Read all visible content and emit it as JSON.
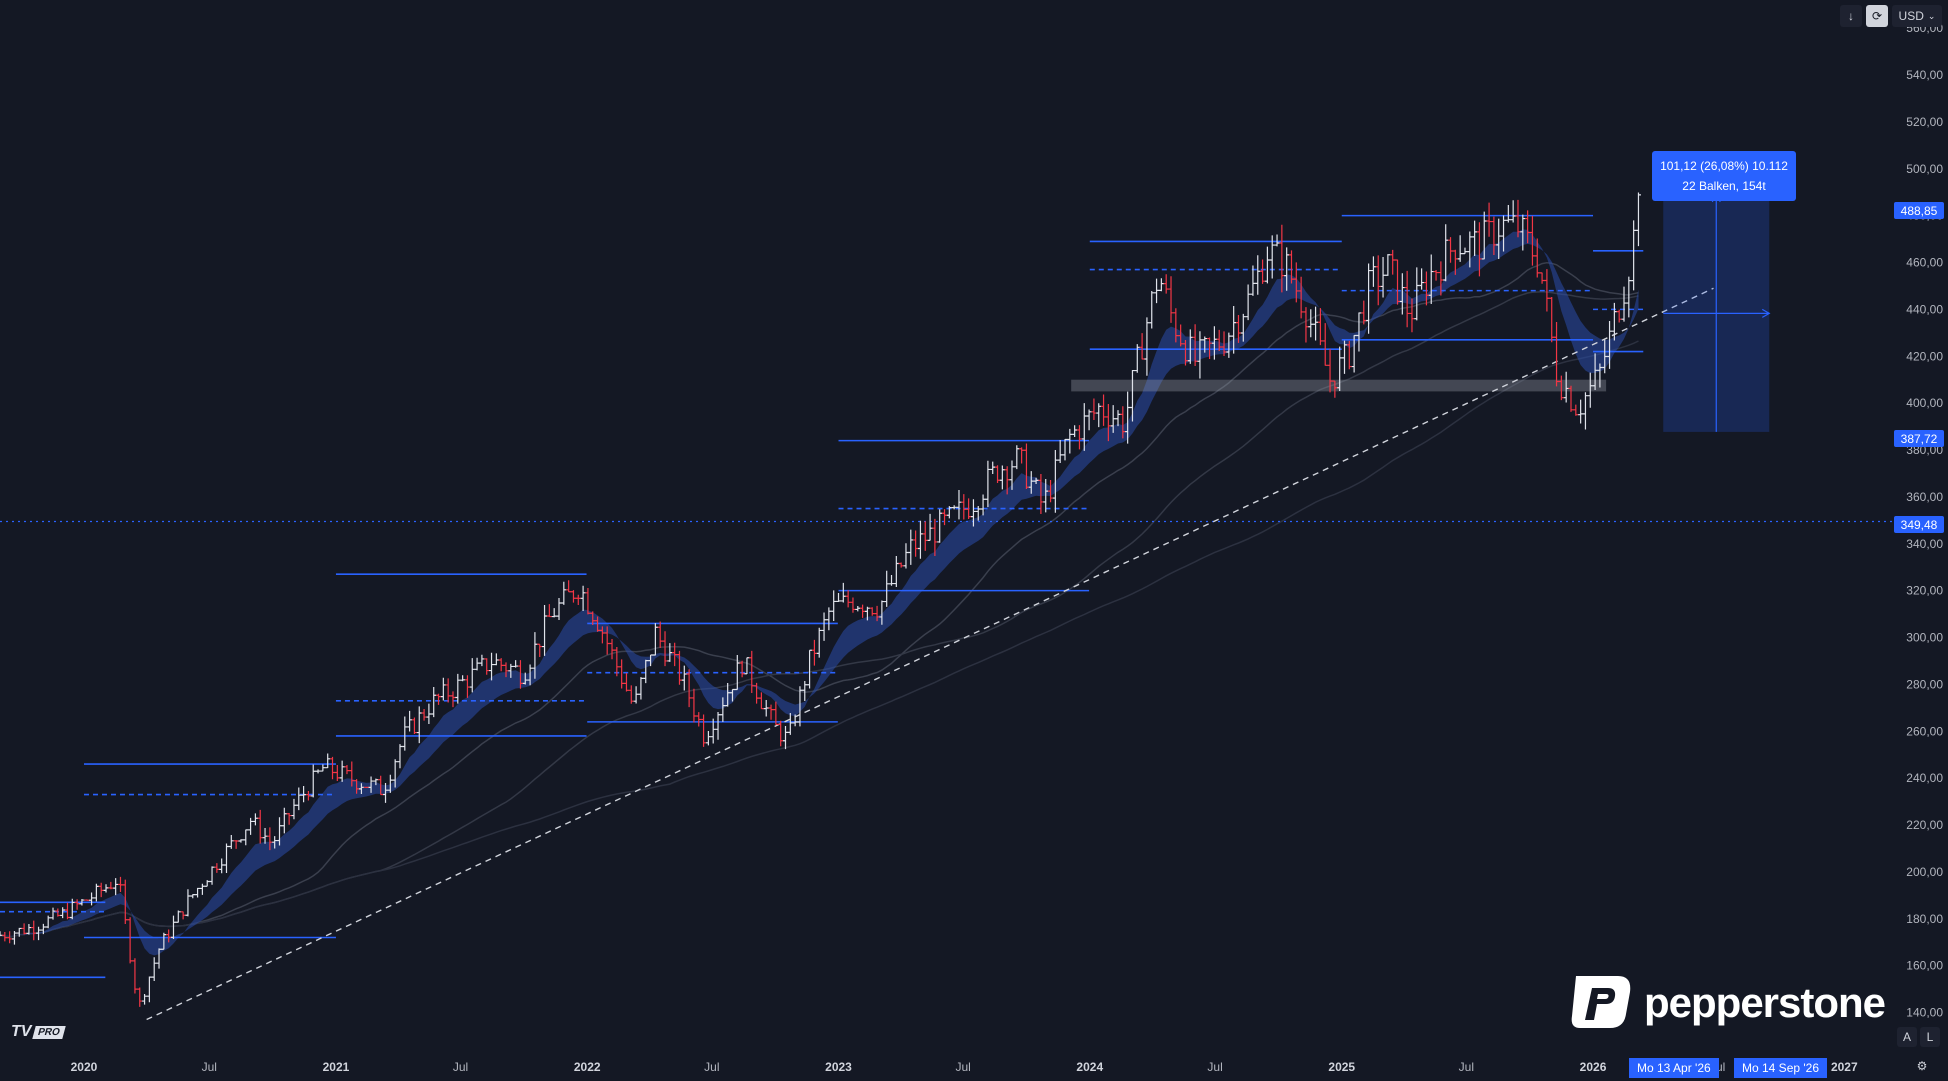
{
  "toolbar": {
    "download_icon": "arrow-down-icon",
    "refresh_icon": "refresh-icon",
    "currency": "USD",
    "currency_chevron": "chevron-down-icon"
  },
  "corner_buttons": {
    "auto": "A",
    "log": "L",
    "settings_icon": "settings-icon"
  },
  "chart_data": {
    "type": "bar",
    "style": "ohlc",
    "price_axis": {
      "ylim": [
        124,
        572
      ],
      "ticks": [
        140,
        160,
        180,
        200,
        220,
        240,
        260,
        280,
        300,
        320,
        340,
        360,
        380,
        400,
        420,
        440,
        460,
        480,
        500,
        520,
        540,
        560
      ],
      "tick_labels": [
        "140,00",
        "160,00",
        "180,00",
        "200,00",
        "220,00",
        "240,00",
        "260,00",
        "280,00",
        "300,00",
        "320,00",
        "340,00",
        "360,00",
        "380,00",
        "400,00",
        "420,00",
        "440,00",
        "460,00",
        "480,00",
        "500,00",
        "520,00",
        "540,00",
        "560,00"
      ]
    },
    "time_axis": {
      "range": [
        "2019-09-01",
        "2027-03-20"
      ],
      "ticks": [
        {
          "date": "2020-01-01",
          "label": "2020",
          "major": true
        },
        {
          "date": "2020-07-01",
          "label": "Jul",
          "major": false
        },
        {
          "date": "2021-01-01",
          "label": "2021",
          "major": true
        },
        {
          "date": "2021-07-01",
          "label": "Jul",
          "major": false
        },
        {
          "date": "2022-01-01",
          "label": "2022",
          "major": true
        },
        {
          "date": "2022-07-01",
          "label": "Jul",
          "major": false
        },
        {
          "date": "2023-01-01",
          "label": "2023",
          "major": true
        },
        {
          "date": "2023-07-01",
          "label": "Jul",
          "major": false
        },
        {
          "date": "2024-01-01",
          "label": "2024",
          "major": true
        },
        {
          "date": "2024-07-01",
          "label": "Jul",
          "major": false
        },
        {
          "date": "2025-01-01",
          "label": "2025",
          "major": true
        },
        {
          "date": "2025-07-01",
          "label": "Jul",
          "major": false
        },
        {
          "date": "2026-01-01",
          "label": "2026",
          "major": true
        },
        {
          "date": "2026-07-01",
          "label": "Jul",
          "major": false
        },
        {
          "date": "2027-01-01",
          "label": "2027",
          "major": true
        }
      ]
    },
    "path": [
      [
        "2019-09-01",
        173
      ],
      [
        "2019-10-15",
        176
      ],
      [
        "2019-12-01",
        182
      ],
      [
        "2020-01-15",
        190
      ],
      [
        "2020-02-20",
        197
      ],
      [
        "2020-03-20",
        142
      ],
      [
        "2020-04-20",
        168
      ],
      [
        "2020-06-01",
        188
      ],
      [
        "2020-07-15",
        205
      ],
      [
        "2020-08-30",
        222
      ],
      [
        "2020-09-30",
        212
      ],
      [
        "2020-11-01",
        228
      ],
      [
        "2020-12-15",
        245
      ],
      [
        "2021-01-20",
        240
      ],
      [
        "2021-03-10",
        235
      ],
      [
        "2021-04-10",
        258
      ],
      [
        "2021-05-20",
        272
      ],
      [
        "2021-06-30",
        280
      ],
      [
        "2021-08-15",
        290
      ],
      [
        "2021-09-30",
        285
      ],
      [
        "2021-11-10",
        310
      ],
      [
        "2021-12-20",
        322
      ],
      [
        "2022-01-20",
        305
      ],
      [
        "2022-03-10",
        270
      ],
      [
        "2022-04-10",
        302
      ],
      [
        "2022-05-20",
        282
      ],
      [
        "2022-06-20",
        258
      ],
      [
        "2022-08-15",
        290
      ],
      [
        "2022-09-30",
        262
      ],
      [
        "2022-10-20",
        256
      ],
      [
        "2022-11-20",
        290
      ],
      [
        "2022-12-20",
        312
      ],
      [
        "2023-01-20",
        316
      ],
      [
        "2023-03-01",
        313
      ],
      [
        "2023-04-15",
        338
      ],
      [
        "2023-06-01",
        348
      ],
      [
        "2023-07-15",
        358
      ],
      [
        "2023-08-20",
        372
      ],
      [
        "2023-09-20",
        376
      ],
      [
        "2023-10-25",
        356
      ],
      [
        "2023-12-01",
        385
      ],
      [
        "2024-01-15",
        398
      ],
      [
        "2024-02-20",
        392
      ],
      [
        "2024-03-20",
        430
      ],
      [
        "2024-04-10",
        455
      ],
      [
        "2024-05-01",
        435
      ],
      [
        "2024-06-01",
        418
      ],
      [
        "2024-07-15",
        428
      ],
      [
        "2024-08-20",
        445
      ],
      [
        "2024-09-15",
        465
      ],
      [
        "2024-10-10",
        460
      ],
      [
        "2024-11-10",
        440
      ],
      [
        "2024-12-15",
        410
      ],
      [
        "2025-01-10",
        420
      ],
      [
        "2025-02-10",
        450
      ],
      [
        "2025-03-10",
        458
      ],
      [
        "2025-04-10",
        438
      ],
      [
        "2025-05-10",
        455
      ],
      [
        "2025-06-15",
        468
      ],
      [
        "2025-07-20",
        468
      ],
      [
        "2025-08-20",
        476
      ],
      [
        "2025-09-15",
        475
      ],
      [
        "2025-10-15",
        460
      ],
      [
        "2025-11-10",
        412
      ],
      [
        "2025-12-10",
        398
      ],
      [
        "2026-01-10",
        412
      ],
      [
        "2026-02-01",
        435
      ],
      [
        "2026-02-20",
        455
      ],
      [
        "2026-03-10",
        487
      ]
    ],
    "trendline": {
      "from": [
        "2020-04-01",
        137
      ],
      "to": [
        "2026-06-25",
        449
      ],
      "style": "dashed"
    },
    "horizontal_line": {
      "price": 349.48,
      "style": "dotted"
    },
    "levels": [
      {
        "from": "2019-09-01",
        "to": "2020-02-01",
        "price": 187,
        "style": "solid"
      },
      {
        "from": "2019-09-01",
        "to": "2020-02-01",
        "price": 183,
        "style": "dashed"
      },
      {
        "from": "2019-09-01",
        "to": "2020-02-01",
        "price": 155,
        "style": "solid"
      },
      {
        "from": "2020-01-01",
        "to": "2021-01-01",
        "price": 246,
        "style": "solid"
      },
      {
        "from": "2020-01-01",
        "to": "2021-01-01",
        "price": 233,
        "style": "dashed"
      },
      {
        "from": "2020-01-01",
        "to": "2021-01-01",
        "price": 172,
        "style": "solid"
      },
      {
        "from": "2021-01-01",
        "to": "2021-12-31",
        "price": 327,
        "style": "solid"
      },
      {
        "from": "2021-01-01",
        "to": "2021-12-31",
        "price": 273,
        "style": "dashed"
      },
      {
        "from": "2021-01-01",
        "to": "2021-12-31",
        "price": 258,
        "style": "solid"
      },
      {
        "from": "2022-01-01",
        "to": "2022-12-31",
        "price": 306,
        "style": "solid"
      },
      {
        "from": "2022-01-01",
        "to": "2022-12-31",
        "price": 285,
        "style": "dashed"
      },
      {
        "from": "2022-01-01",
        "to": "2022-12-31",
        "price": 264,
        "style": "solid"
      },
      {
        "from": "2023-01-01",
        "to": "2023-12-31",
        "price": 384,
        "style": "solid"
      },
      {
        "from": "2023-01-01",
        "to": "2023-12-31",
        "price": 355,
        "style": "dashed"
      },
      {
        "from": "2023-01-01",
        "to": "2023-12-31",
        "price": 320,
        "style": "solid"
      },
      {
        "from": "2024-01-01",
        "to": "2025-01-01",
        "price": 469,
        "style": "solid"
      },
      {
        "from": "2024-01-01",
        "to": "2025-01-01",
        "price": 457,
        "style": "dashed"
      },
      {
        "from": "2024-01-01",
        "to": "2025-01-01",
        "price": 423,
        "style": "solid"
      },
      {
        "from": "2025-01-01",
        "to": "2026-01-01",
        "price": 480,
        "style": "solid"
      },
      {
        "from": "2025-01-01",
        "to": "2026-01-01",
        "price": 448,
        "style": "dashed"
      },
      {
        "from": "2025-01-01",
        "to": "2026-01-01",
        "price": 427,
        "style": "solid"
      },
      {
        "from": "2026-01-01",
        "to": "2026-03-15",
        "price": 465,
        "style": "solid"
      },
      {
        "from": "2026-01-01",
        "to": "2026-03-15",
        "price": 440,
        "style": "dashed"
      },
      {
        "from": "2026-01-01",
        "to": "2026-03-15",
        "price": 422,
        "style": "solid"
      }
    ],
    "support_zone": {
      "from": "2023-12-05",
      "to": "2026-01-20",
      "low": 405,
      "high": 410
    },
    "measure_box": {
      "from": "2026-04-13",
      "to": "2026-09-14",
      "low": 387.72,
      "high": 488.85,
      "label_line1": "101,12 (26,08%) 10.112",
      "label_line2": "22 Balken, 154t"
    },
    "last_price": {
      "value": 488.85,
      "label": "488,85"
    },
    "low_marker": {
      "value": 387.72,
      "label": "387,72"
    },
    "line_marker": {
      "value": 349.48,
      "label": "349,48"
    },
    "date_tags": [
      "Mo 13 Apr '26",
      "Mo 14 Sep '26"
    ],
    "colors": {
      "up": "#e0e3eb",
      "down": "#f23645",
      "level": "#2962ff",
      "background": "#141824",
      "band": "#2a4caa"
    }
  },
  "branding": {
    "logo_text": "pepperstone",
    "logo_icon": "pepperstone-p-icon",
    "tv_logo": "TV",
    "tv_badge": "PRO"
  }
}
